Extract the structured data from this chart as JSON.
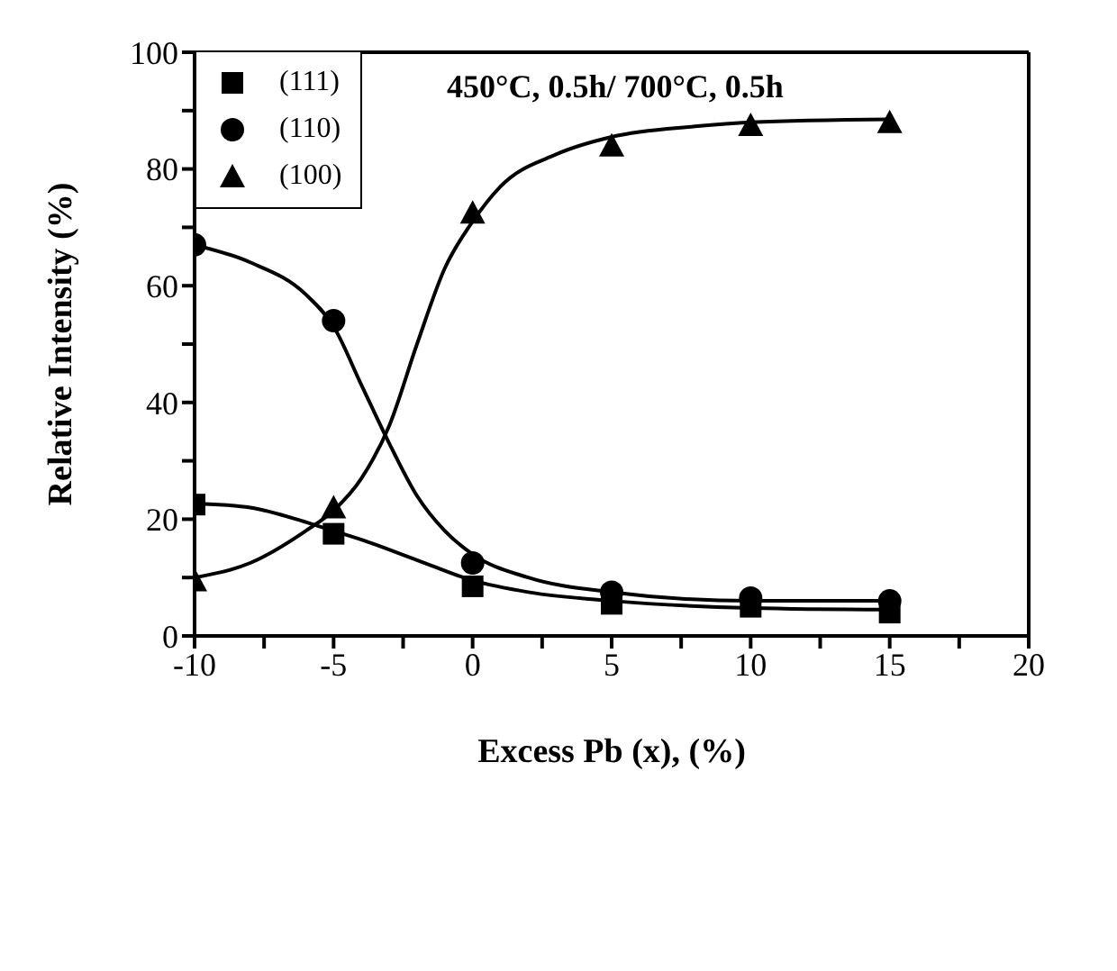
{
  "chart_data": {
    "type": "scatter",
    "xlabel": "Excess Pb (x), (%)",
    "ylabel": "Relative Intensity (%)",
    "annotations": [
      "450°C, 0.5h/ 700°C, 0.5h"
    ],
    "xlim": [
      -10,
      20
    ],
    "xticks": [
      -10,
      {
        "value": -7.5,
        "label": null
      },
      -5,
      {
        "value": -2.5,
        "label": null
      },
      0,
      {
        "value": 2.5,
        "label": null
      },
      5,
      {
        "value": 7.5,
        "label": null
      },
      10,
      {
        "value": 12.5,
        "label": null
      },
      15,
      {
        "value": 17.5,
        "label": null
      },
      20
    ],
    "ylim": [
      0,
      100
    ],
    "yticks": [
      0,
      {
        "value": 10,
        "label": null
      },
      20,
      {
        "value": 30,
        "label": null
      },
      40,
      {
        "value": 50,
        "label": null
      },
      60,
      {
        "value": 70,
        "label": null
      },
      80,
      {
        "value": 90,
        "label": null
      },
      100
    ],
    "legend": "top left",
    "series": [
      {
        "name": "(111)",
        "marker": "square",
        "color": "#000000",
        "x": [
          -10,
          -5,
          0,
          5,
          10,
          15
        ],
        "values": [
          22.5,
          17.5,
          8.5,
          5.5,
          5,
          4
        ]
      },
      {
        "name": "(110)",
        "marker": "circle",
        "color": "#000000",
        "x": [
          -10,
          -5,
          0,
          5,
          10,
          15
        ],
        "values": [
          67,
          54,
          12.5,
          7.5,
          6.5,
          6
        ]
      },
      {
        "name": "(100)",
        "marker": "triangle",
        "color": "#000000",
        "x": [
          -10,
          -5,
          0,
          5,
          10,
          15
        ],
        "values": [
          9.5,
          22,
          72.5,
          84,
          87.5,
          88
        ]
      },
      {
        "type": "line",
        "marker": "none",
        "color": "#000000",
        "x": [
          -10,
          -8,
          -6,
          -5,
          -4,
          -2,
          0,
          2,
          5,
          10,
          15
        ],
        "values": [
          22.7,
          22,
          19.5,
          18,
          16.5,
          13,
          9.5,
          7.5,
          6,
          4.8,
          4.5
        ]
      },
      {
        "type": "line",
        "marker": "none",
        "color": "#000000",
        "x": [
          -10,
          -8,
          -6,
          -5,
          -4,
          -3,
          -2,
          -1,
          0,
          2,
          5,
          10,
          15
        ],
        "values": [
          67,
          64,
          58.5,
          53,
          43,
          33,
          24,
          18,
          14,
          10,
          7.5,
          6,
          6
        ]
      },
      {
        "type": "line",
        "marker": "none",
        "color": "#000000",
        "x": [
          -10,
          -8,
          -6,
          -5,
          -4,
          -3,
          -2,
          -1,
          0,
          1,
          3,
          5,
          8,
          10,
          15
        ],
        "values": [
          10,
          12.5,
          18,
          21.5,
          27,
          36,
          50,
          63,
          71,
          77,
          82.5,
          85.5,
          87.3,
          88,
          88.5
        ]
      }
    ]
  }
}
